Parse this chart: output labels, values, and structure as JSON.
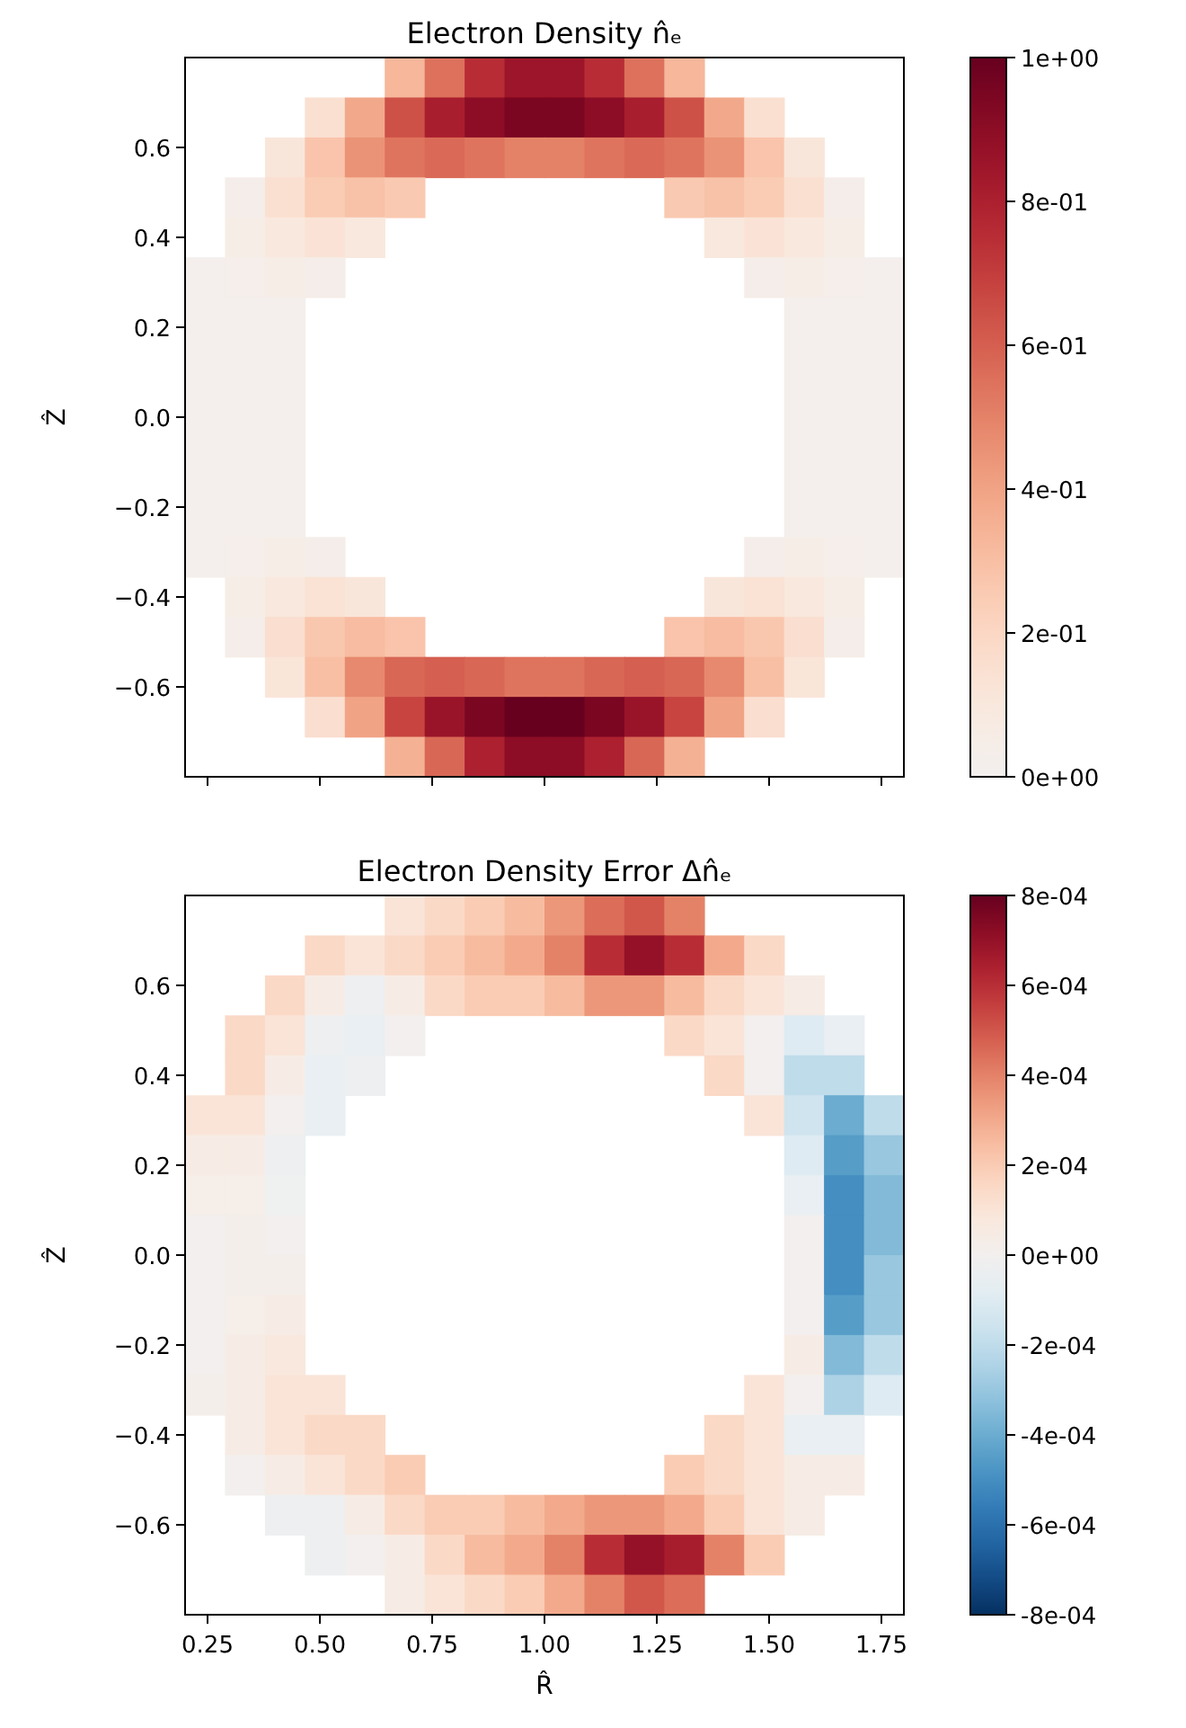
{
  "chart_data": [
    {
      "type": "heatmap",
      "title": "Electron Density n̂ₑ",
      "ylabel": "Ẑ",
      "xlim": [
        0.2,
        1.8
      ],
      "ylim": [
        -0.8,
        0.8
      ],
      "xticks": [
        {
          "value": 0.25,
          "label": null
        },
        {
          "value": 0.5,
          "label": null
        },
        {
          "value": 0.75,
          "label": null
        },
        {
          "value": 1,
          "label": null
        },
        {
          "value": 1.25,
          "label": null
        },
        {
          "value": 1.5,
          "label": null
        },
        {
          "value": 1.75,
          "label": null
        }
      ],
      "yticks": [
        {
          "value": -0.6,
          "label": "−0.6"
        },
        {
          "value": -0.4,
          "label": "−0.4"
        },
        {
          "value": -0.2,
          "label": "−0.2"
        },
        {
          "value": 0,
          "label": "0.0"
        },
        {
          "value": 0.2,
          "label": "0.2"
        },
        {
          "value": 0.4,
          "label": "0.4"
        },
        {
          "value": 0.6,
          "label": "0.6"
        }
      ],
      "tick_labels": "y",
      "clim": [
        0,
        1
      ],
      "cticks": [
        {
          "value": 0,
          "label": "0e+00"
        },
        {
          "value": 0.2,
          "label": "2e-01"
        },
        {
          "value": 0.4,
          "label": "4e-01"
        },
        {
          "value": 0.6,
          "label": "6e-01"
        },
        {
          "value": 0.8,
          "label": "8e-01"
        },
        {
          "value": 1,
          "label": "1e+00"
        }
      ],
      "cells": [
        [
          null,
          null,
          null,
          null,
          null,
          0.33,
          0.55,
          0.75,
          0.85,
          0.85,
          0.75,
          0.55,
          0.33,
          null,
          null,
          null,
          null,
          null
        ],
        [
          null,
          null,
          null,
          0.15,
          0.38,
          0.64,
          0.81,
          0.9,
          0.95,
          0.95,
          0.9,
          0.81,
          0.64,
          0.38,
          0.15,
          null,
          null,
          null
        ],
        [
          null,
          null,
          0.11,
          0.28,
          0.45,
          0.54,
          0.57,
          0.54,
          0.5,
          0.5,
          0.54,
          0.57,
          0.54,
          0.45,
          0.28,
          0.11,
          null,
          null
        ],
        [
          null,
          0.04,
          0.15,
          0.25,
          0.29,
          0.26,
          null,
          null,
          null,
          null,
          null,
          null,
          0.26,
          0.29,
          0.25,
          0.15,
          0.04,
          null
        ],
        [
          null,
          0.05,
          0.1,
          0.13,
          0.1,
          null,
          null,
          null,
          null,
          null,
          null,
          null,
          null,
          0.1,
          0.13,
          0.1,
          0.05,
          null
        ],
        [
          0.02,
          0.03,
          0.05,
          0.04,
          null,
          null,
          null,
          null,
          null,
          null,
          null,
          null,
          null,
          null,
          0.04,
          0.05,
          0.03,
          0.02
        ],
        [
          0.02,
          0.02,
          0.02,
          null,
          null,
          null,
          null,
          null,
          null,
          null,
          null,
          null,
          null,
          null,
          null,
          0.02,
          0.02,
          0.02
        ],
        [
          0.02,
          0.02,
          0.02,
          null,
          null,
          null,
          null,
          null,
          null,
          null,
          null,
          null,
          null,
          null,
          null,
          0.02,
          0.02,
          0.02
        ],
        [
          0.02,
          0.02,
          0.02,
          null,
          null,
          null,
          null,
          null,
          null,
          null,
          null,
          null,
          null,
          null,
          null,
          0.02,
          0.02,
          0.02
        ],
        [
          0.02,
          0.02,
          0.02,
          null,
          null,
          null,
          null,
          null,
          null,
          null,
          null,
          null,
          null,
          null,
          null,
          0.02,
          0.02,
          0.02
        ],
        [
          0.02,
          0.02,
          0.02,
          null,
          null,
          null,
          null,
          null,
          null,
          null,
          null,
          null,
          null,
          null,
          null,
          0.02,
          0.02,
          0.02
        ],
        [
          0.02,
          0.02,
          0.02,
          null,
          null,
          null,
          null,
          null,
          null,
          null,
          null,
          null,
          null,
          null,
          null,
          0.02,
          0.02,
          0.02
        ],
        [
          0.02,
          0.03,
          0.05,
          0.04,
          null,
          null,
          null,
          null,
          null,
          null,
          null,
          null,
          null,
          null,
          0.04,
          0.05,
          0.03,
          0.02
        ],
        [
          null,
          0.05,
          0.1,
          0.14,
          0.11,
          null,
          null,
          null,
          null,
          null,
          null,
          null,
          null,
          0.11,
          0.14,
          0.1,
          0.05,
          null
        ],
        [
          null,
          0.04,
          0.16,
          0.27,
          0.31,
          0.28,
          null,
          null,
          null,
          null,
          null,
          null,
          0.28,
          0.31,
          0.27,
          0.16,
          0.04,
          null
        ],
        [
          null,
          null,
          0.12,
          0.3,
          0.48,
          0.58,
          0.6,
          0.58,
          0.54,
          0.54,
          0.58,
          0.6,
          0.58,
          0.48,
          0.3,
          0.12,
          null,
          null
        ],
        [
          null,
          null,
          null,
          0.16,
          0.4,
          0.68,
          0.86,
          0.95,
          1.0,
          1.0,
          0.95,
          0.86,
          0.68,
          0.4,
          0.16,
          null,
          null,
          null
        ],
        [
          null,
          null,
          null,
          null,
          null,
          0.35,
          0.58,
          0.8,
          0.9,
          0.9,
          0.8,
          0.58,
          0.35,
          null,
          null,
          null,
          null,
          null
        ]
      ]
    },
    {
      "type": "heatmap",
      "title": "Electron Density Error Δn̂ₑ",
      "xlabel": "R̂",
      "ylabel": "Ẑ",
      "xlim": [
        0.2,
        1.8
      ],
      "ylim": [
        -0.8,
        0.8
      ],
      "xticks": [
        {
          "value": 0.25,
          "label": "0.25"
        },
        {
          "value": 0.5,
          "label": "0.50"
        },
        {
          "value": 0.75,
          "label": "0.75"
        },
        {
          "value": 1,
          "label": "1.00"
        },
        {
          "value": 1.25,
          "label": "1.25"
        },
        {
          "value": 1.5,
          "label": "1.50"
        },
        {
          "value": 1.75,
          "label": "1.75"
        }
      ],
      "yticks": [
        {
          "value": -0.6,
          "label": "−0.6"
        },
        {
          "value": -0.4,
          "label": "−0.4"
        },
        {
          "value": -0.2,
          "label": "−0.2"
        },
        {
          "value": 0,
          "label": "0.0"
        },
        {
          "value": 0.2,
          "label": "0.2"
        },
        {
          "value": 0.4,
          "label": "0.4"
        },
        {
          "value": 0.6,
          "label": "0.6"
        }
      ],
      "clim": [
        -0.0008,
        0.0008
      ],
      "cticks": [
        {
          "value": -0.0008,
          "label": "-8e-04"
        },
        {
          "value": -0.0006,
          "label": "-6e-04"
        },
        {
          "value": -0.0004,
          "label": "-4e-04"
        },
        {
          "value": -0.0002,
          "label": "-2e-04"
        },
        {
          "value": 0,
          "label": "0e+00"
        },
        {
          "value": 0.0002,
          "label": "2e-04"
        },
        {
          "value": 0.0004,
          "label": "4e-04"
        },
        {
          "value": 0.0006,
          "label": "6e-04"
        },
        {
          "value": 0.0008,
          "label": "8e-04"
        }
      ],
      "cells": [
        [
          null,
          null,
          null,
          null,
          null,
          0.0001,
          0.00015,
          0.0002,
          0.00025,
          0.00035,
          0.00045,
          0.0005,
          0.0004,
          null,
          null,
          null,
          null,
          null
        ],
        [
          null,
          null,
          null,
          0.00015,
          0.0001,
          0.00015,
          0.0002,
          0.00025,
          0.0003,
          0.0004,
          0.0006,
          0.0007,
          0.0006,
          0.0003,
          0.00015,
          null,
          null,
          null
        ],
        [
          null,
          null,
          0.00015,
          5e-05,
          -3e-05,
          5e-05,
          0.00015,
          0.0002,
          0.0002,
          0.00025,
          0.00035,
          0.00035,
          0.00025,
          0.00015,
          0.0001,
          5e-05,
          null,
          null
        ],
        [
          null,
          0.00015,
          0.0001,
          -3e-05,
          -5e-05,
          0,
          null,
          null,
          null,
          null,
          null,
          null,
          0.00015,
          0.0001,
          0,
          -0.0001,
          -5e-05,
          null
        ],
        [
          null,
          0.00015,
          5e-05,
          -5e-05,
          -3e-05,
          null,
          null,
          null,
          null,
          null,
          null,
          null,
          null,
          0.00015,
          0,
          -0.0002,
          -0.0002,
          null
        ],
        [
          0.0001,
          0.0001,
          0,
          -5e-05,
          null,
          null,
          null,
          null,
          null,
          null,
          null,
          null,
          null,
          null,
          0.0001,
          -0.00015,
          -0.0004,
          -0.0002
        ],
        [
          5e-05,
          5e-05,
          -3e-05,
          null,
          null,
          null,
          null,
          null,
          null,
          null,
          null,
          null,
          null,
          null,
          null,
          -0.0001,
          -0.00045,
          -0.0003
        ],
        [
          3e-05,
          3e-05,
          -2e-05,
          null,
          null,
          null,
          null,
          null,
          null,
          null,
          null,
          null,
          null,
          null,
          null,
          -5e-05,
          -0.0005,
          -0.00035
        ],
        [
          0,
          2e-05,
          0,
          null,
          null,
          null,
          null,
          null,
          null,
          null,
          null,
          null,
          null,
          null,
          null,
          0,
          -0.0005,
          -0.00035
        ],
        [
          0,
          2e-05,
          2e-05,
          null,
          null,
          null,
          null,
          null,
          null,
          null,
          null,
          null,
          null,
          null,
          null,
          0,
          -0.0005,
          -0.0003
        ],
        [
          0,
          3e-05,
          5e-05,
          null,
          null,
          null,
          null,
          null,
          null,
          null,
          null,
          null,
          null,
          null,
          null,
          0,
          -0.00045,
          -0.0003
        ],
        [
          0,
          5e-05,
          8e-05,
          null,
          null,
          null,
          null,
          null,
          null,
          null,
          null,
          null,
          null,
          null,
          null,
          5e-05,
          -0.00035,
          -0.0002
        ],
        [
          2e-05,
          5e-05,
          0.0001,
          0.0001,
          null,
          null,
          null,
          null,
          null,
          null,
          null,
          null,
          null,
          null,
          0.0001,
          0,
          -0.00025,
          -0.0001
        ],
        [
          null,
          5e-05,
          0.0001,
          0.00015,
          0.00015,
          null,
          null,
          null,
          null,
          null,
          null,
          null,
          null,
          0.00015,
          0.0001,
          -5e-05,
          -5e-05,
          null
        ],
        [
          null,
          0,
          5e-05,
          0.0001,
          0.00015,
          0.0002,
          null,
          null,
          null,
          null,
          null,
          null,
          0.0002,
          0.00015,
          0.0001,
          5e-05,
          5e-05,
          null
        ],
        [
          null,
          null,
          -3e-05,
          -3e-05,
          5e-05,
          0.00015,
          0.0002,
          0.0002,
          0.00025,
          0.0003,
          0.00035,
          0.00035,
          0.0003,
          0.0002,
          0.0001,
          5e-05,
          null,
          null
        ],
        [
          null,
          null,
          null,
          -3e-05,
          0,
          5e-05,
          0.00015,
          0.00025,
          0.0003,
          0.0004,
          0.0006,
          0.0007,
          0.00065,
          0.0004,
          0.0002,
          null,
          null,
          null
        ],
        [
          null,
          null,
          null,
          null,
          null,
          5e-05,
          0.0001,
          0.00015,
          0.0002,
          0.0003,
          0.0004,
          0.0005,
          0.00045,
          null,
          null,
          null,
          null,
          null
        ]
      ]
    }
  ]
}
